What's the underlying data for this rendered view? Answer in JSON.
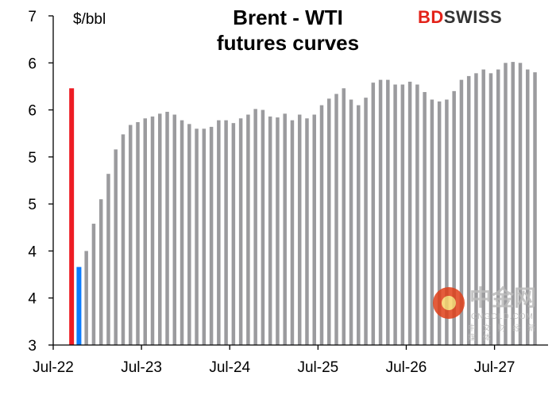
{
  "chart_data": {
    "type": "bar",
    "title": "Brent - WTI futures curves",
    "title_lines": [
      "Brent - WTI",
      "futures curves"
    ],
    "ylabel": "$/bbl",
    "ylim": [
      3,
      6.5
    ],
    "ytick_values": [
      3,
      3.5,
      4,
      4.5,
      5,
      5.5,
      6,
      6.5
    ],
    "ytick_labels": [
      "3",
      "4",
      "4",
      "5",
      "5",
      "6",
      "6",
      "7"
    ],
    "xtick_labels": [
      "Jul-22",
      "Jul-23",
      "Jul-24",
      "Jul-25",
      "Jul-26",
      "Jul-27"
    ],
    "grid": false,
    "legend": "none",
    "categories": [
      "Sep-22",
      "Oct-22",
      "Nov-22",
      "Dec-22",
      "Jan-23",
      "Feb-23",
      "Mar-23",
      "Apr-23",
      "May-23",
      "Jun-23",
      "Jul-23",
      "Aug-23",
      "Sep-23",
      "Oct-23",
      "Nov-23",
      "Dec-23",
      "Jan-24",
      "Feb-24",
      "Mar-24",
      "Apr-24",
      "May-24",
      "Jun-24",
      "Jul-24",
      "Aug-24",
      "Sep-24",
      "Oct-24",
      "Nov-24",
      "Dec-24",
      "Jan-25",
      "Feb-25",
      "Mar-25",
      "Apr-25",
      "May-25",
      "Jun-25",
      "Jul-25",
      "Aug-25",
      "Sep-25",
      "Oct-25",
      "Nov-25",
      "Dec-25",
      "Jan-26",
      "Feb-26",
      "Mar-26",
      "Apr-26",
      "May-26",
      "Jun-26",
      "Jul-26",
      "Aug-26",
      "Sep-26",
      "Oct-26",
      "Nov-26",
      "Dec-26",
      "Jan-27",
      "Feb-27",
      "Mar-27",
      "Apr-27",
      "May-27",
      "Jun-27",
      "Jul-27",
      "Aug-27",
      "Sep-27",
      "Oct-27",
      "Nov-27",
      "Dec-27"
    ],
    "values": [
      5.73,
      3.83,
      4.0,
      4.29,
      4.55,
      4.82,
      5.08,
      5.24,
      5.34,
      5.37,
      5.41,
      5.43,
      5.46,
      5.48,
      5.45,
      5.39,
      5.35,
      5.3,
      5.3,
      5.32,
      5.39,
      5.39,
      5.36,
      5.41,
      5.45,
      5.51,
      5.5,
      5.43,
      5.42,
      5.46,
      5.39,
      5.45,
      5.41,
      5.45,
      5.55,
      5.62,
      5.67,
      5.73,
      5.61,
      5.55,
      5.63,
      5.79,
      5.82,
      5.82,
      5.77,
      5.77,
      5.8,
      5.77,
      5.69,
      5.61,
      5.59,
      5.61,
      5.7,
      5.82,
      5.86,
      5.89,
      5.93,
      5.89,
      5.93,
      6.0,
      6.01,
      6.0,
      5.93,
      5.9
    ],
    "bar_colors": {
      "first": "#ed1c24",
      "second": "#0a7cff",
      "rest": "#9b9b9e"
    }
  },
  "logo": {
    "part1": "BD",
    "part2": "SWISS"
  },
  "watermark": {
    "name": "中金网",
    "domain": "CNGOLD.COM",
    "tagline": "中 文 财 经 新 媒 体"
  }
}
